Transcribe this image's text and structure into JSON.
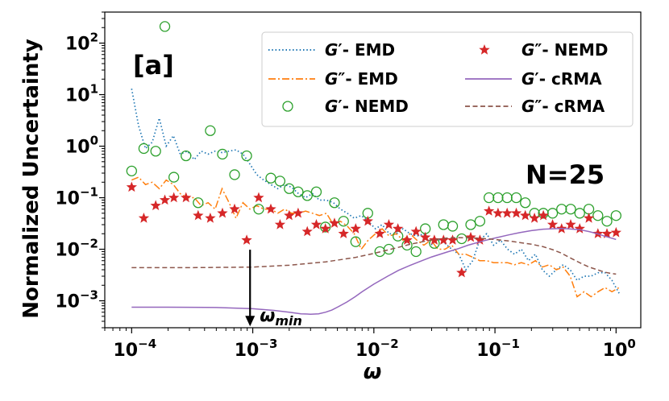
{
  "chart_data": {
    "type": "line",
    "xscale": "log",
    "yscale": "log",
    "xlim": [
      6e-05,
      1.6
    ],
    "ylim": [
      0.0003,
      400
    ],
    "xlabel": "ω",
    "ylabel": "Normalized Uncertainty",
    "xticks": [
      {
        "value": 0.0001,
        "base": "10",
        "exp": "−4"
      },
      {
        "value": 0.001,
        "base": "10",
        "exp": "−3"
      },
      {
        "value": 0.01,
        "base": "10",
        "exp": "−2"
      },
      {
        "value": 0.1,
        "base": "10",
        "exp": "−1"
      },
      {
        "value": 1,
        "base": "10",
        "exp": "0"
      }
    ],
    "yticks": [
      {
        "value": 0.001,
        "base": "10",
        "exp": "−3"
      },
      {
        "value": 0.01,
        "base": "10",
        "exp": "−2"
      },
      {
        "value": 0.1,
        "base": "10",
        "exp": "−1"
      },
      {
        "value": 1,
        "base": "10",
        "exp": "0"
      },
      {
        "value": 10,
        "base": "10",
        "exp": "1"
      },
      {
        "value": 100,
        "base": "10",
        "exp": "2"
      }
    ],
    "panel_label": "[a]",
    "n_label": "N=25",
    "annotation": {
      "label": "ω",
      "subscript": "min",
      "x": 0.00095,
      "y_start": 0.0098,
      "y_end": 0.00032
    },
    "series": [
      {
        "name": "G′- EMD",
        "prefix": "G",
        "prime": "′",
        "suffix": "- EMD",
        "style": "dotted",
        "color": "#1f77b4",
        "x": [
          0.0001,
          0.000114,
          0.00013,
          0.000148,
          0.000169,
          0.000193,
          0.000221,
          0.000252,
          0.000288,
          0.000329,
          0.000375,
          0.000428,
          0.000489,
          0.000558,
          0.000637,
          0.000727,
          0.00083,
          0.000947,
          0.00108,
          0.00123,
          0.00141,
          0.00161,
          0.00183,
          0.00209,
          0.00239,
          0.00273,
          0.00311,
          0.00355,
          0.00406,
          0.00463,
          0.00529,
          0.00604,
          0.00689,
          0.00787,
          0.00898,
          0.0103,
          0.0117,
          0.0134,
          0.0153,
          0.0174,
          0.0199,
          0.0227,
          0.0259,
          0.0296,
          0.0338,
          0.0386,
          0.044,
          0.0503,
          0.0574,
          0.0655,
          0.0748,
          0.0854,
          0.0975,
          0.111,
          0.127,
          0.145,
          0.165,
          0.189,
          0.216,
          0.246,
          0.281,
          0.321,
          0.366,
          0.418,
          0.477,
          0.545,
          0.622,
          0.71,
          0.811,
          0.925,
          1.06
        ],
        "y": [
          13,
          2.5,
          0.9,
          1.2,
          3.5,
          1.0,
          1.6,
          0.7,
          0.8,
          0.55,
          0.8,
          0.7,
          0.8,
          0.75,
          0.8,
          0.85,
          0.7,
          0.45,
          0.28,
          0.22,
          0.18,
          0.15,
          0.18,
          0.16,
          0.12,
          0.1,
          0.12,
          0.09,
          0.09,
          0.08,
          0.06,
          0.05,
          0.04,
          0.045,
          0.035,
          0.025,
          0.03,
          0.02,
          0.02,
          0.025,
          0.02,
          0.018,
          0.02,
          0.012,
          0.016,
          0.013,
          0.01,
          0.008,
          0.004,
          0.006,
          0.015,
          0.02,
          0.012,
          0.015,
          0.01,
          0.008,
          0.01,
          0.006,
          0.008,
          0.004,
          0.003,
          0.004,
          0.005,
          0.004,
          0.0025,
          0.003,
          0.003,
          0.0035,
          0.0035,
          0.0025,
          0.0014
        ]
      },
      {
        "name": "G″- EMD",
        "prefix": "G",
        "prime": "″",
        "suffix": "- EMD",
        "style": "dashdot",
        "color": "#ff7f0e",
        "x": [
          0.0001,
          0.000114,
          0.00013,
          0.000148,
          0.000169,
          0.000193,
          0.000221,
          0.000252,
          0.000288,
          0.000329,
          0.000375,
          0.000428,
          0.000489,
          0.000558,
          0.000637,
          0.000727,
          0.00083,
          0.000947,
          0.00108,
          0.00123,
          0.00141,
          0.00161,
          0.00183,
          0.00209,
          0.00239,
          0.00273,
          0.00311,
          0.00355,
          0.00406,
          0.00463,
          0.00529,
          0.00604,
          0.00689,
          0.00787,
          0.00898,
          0.0103,
          0.0117,
          0.0134,
          0.0153,
          0.0174,
          0.0199,
          0.0227,
          0.0259,
          0.0296,
          0.0338,
          0.0386,
          0.044,
          0.0503,
          0.0574,
          0.0655,
          0.0748,
          0.0854,
          0.0975,
          0.111,
          0.127,
          0.145,
          0.165,
          0.189,
          0.216,
          0.246,
          0.281,
          0.321,
          0.366,
          0.418,
          0.477,
          0.545,
          0.622,
          0.71,
          0.811,
          0.925,
          1.06
        ],
        "y": [
          0.22,
          0.25,
          0.18,
          0.2,
          0.15,
          0.22,
          0.18,
          0.12,
          0.1,
          0.1,
          0.07,
          0.08,
          0.06,
          0.15,
          0.08,
          0.04,
          0.08,
          0.06,
          0.07,
          0.06,
          0.06,
          0.05,
          0.06,
          0.05,
          0.05,
          0.055,
          0.05,
          0.045,
          0.05,
          0.03,
          0.035,
          0.028,
          0.02,
          0.01,
          0.015,
          0.02,
          0.025,
          0.018,
          0.02,
          0.015,
          0.02,
          0.015,
          0.012,
          0.015,
          0.01,
          0.01,
          0.012,
          0.008,
          0.008,
          0.007,
          0.006,
          0.006,
          0.0055,
          0.0055,
          0.0055,
          0.005,
          0.0055,
          0.005,
          0.006,
          0.0045,
          0.005,
          0.004,
          0.0045,
          0.003,
          0.0012,
          0.0015,
          0.0012,
          0.0015,
          0.0018,
          0.0015,
          0.0018
        ]
      },
      {
        "name": "G′- NEMD",
        "prefix": "G",
        "prime": "′",
        "suffix": "- NEMD",
        "style": "open-circle",
        "color": "#2ca02c",
        "x": [
          0.0001,
          0.000126,
          0.000158,
          0.000188,
          0.000223,
          0.000281,
          0.000354,
          0.000446,
          0.000562,
          0.000708,
          0.000891,
          0.00112,
          0.00141,
          0.00168,
          0.002,
          0.00237,
          0.00282,
          0.00335,
          0.00398,
          0.00473,
          0.00562,
          0.00708,
          0.00891,
          0.0112,
          0.0133,
          0.0158,
          0.0188,
          0.0223,
          0.0266,
          0.0316,
          0.0376,
          0.0447,
          0.0531,
          0.0631,
          0.0751,
          0.0892,
          0.106,
          0.126,
          0.15,
          0.178,
          0.212,
          0.251,
          0.299,
          0.355,
          0.422,
          0.501,
          0.596,
          0.708,
          0.841,
          1.0
        ],
        "y": [
          0.33,
          0.9,
          0.8,
          210,
          0.25,
          0.65,
          0.08,
          2.0,
          0.7,
          0.28,
          0.65,
          0.06,
          0.24,
          0.21,
          0.15,
          0.13,
          0.11,
          0.13,
          0.027,
          0.08,
          0.035,
          0.014,
          0.05,
          0.009,
          0.01,
          0.018,
          0.012,
          0.009,
          0.025,
          0.013,
          0.03,
          0.028,
          0.016,
          0.03,
          0.035,
          0.1,
          0.1,
          0.1,
          0.1,
          0.08,
          0.05,
          0.05,
          0.05,
          0.06,
          0.06,
          0.05,
          0.06,
          0.045,
          0.035,
          0.045
        ]
      },
      {
        "name": "G″- NEMD",
        "prefix": "G",
        "prime": "″",
        "suffix": "- NEMD",
        "style": "star",
        "color": "#d62728",
        "x": [
          0.0001,
          0.000126,
          0.000158,
          0.000188,
          0.000223,
          0.000281,
          0.000354,
          0.000446,
          0.000562,
          0.000708,
          0.000891,
          0.00112,
          0.00141,
          0.00168,
          0.002,
          0.00237,
          0.00282,
          0.00335,
          0.00398,
          0.00473,
          0.00562,
          0.00708,
          0.00891,
          0.0112,
          0.0133,
          0.0158,
          0.0188,
          0.0223,
          0.0266,
          0.0316,
          0.0376,
          0.0447,
          0.0531,
          0.0631,
          0.0751,
          0.0892,
          0.106,
          0.126,
          0.15,
          0.178,
          0.212,
          0.251,
          0.299,
          0.355,
          0.422,
          0.501,
          0.596,
          0.708,
          0.841,
          1.0
        ],
        "y": [
          0.16,
          0.04,
          0.07,
          0.09,
          0.1,
          0.1,
          0.045,
          0.04,
          0.05,
          0.06,
          0.015,
          0.1,
          0.06,
          0.03,
          0.045,
          0.05,
          0.022,
          0.03,
          0.025,
          0.032,
          0.02,
          0.025,
          0.035,
          0.02,
          0.03,
          0.025,
          0.015,
          0.022,
          0.017,
          0.015,
          0.015,
          0.015,
          0.0035,
          0.017,
          0.015,
          0.055,
          0.05,
          0.05,
          0.05,
          0.045,
          0.04,
          0.045,
          0.03,
          0.025,
          0.03,
          0.025,
          0.04,
          0.02,
          0.02,
          0.021
        ]
      },
      {
        "name": "G′- cRMA",
        "prefix": "G",
        "prime": "′",
        "suffix": "- cRMA",
        "style": "solid",
        "color": "#9467bd",
        "x": [
          0.0001,
          0.0002,
          0.0005,
          0.001,
          0.0015,
          0.002,
          0.0025,
          0.003,
          0.0035,
          0.004,
          0.0045,
          0.005,
          0.006,
          0.007,
          0.008,
          0.01,
          0.013,
          0.016,
          0.02,
          0.025,
          0.03,
          0.04,
          0.05,
          0.06,
          0.08,
          0.1,
          0.13,
          0.16,
          0.2,
          0.25,
          0.3,
          0.35,
          0.4,
          0.5,
          0.6,
          0.7,
          0.8,
          1.0
        ],
        "y": [
          0.00075,
          0.00075,
          0.00074,
          0.0007,
          0.00065,
          0.0006,
          0.00056,
          0.00055,
          0.00056,
          0.0006,
          0.00066,
          0.00075,
          0.00095,
          0.0012,
          0.0015,
          0.0021,
          0.003,
          0.0039,
          0.0049,
          0.006,
          0.0071,
          0.0088,
          0.0103,
          0.012,
          0.0145,
          0.0165,
          0.019,
          0.021,
          0.023,
          0.0245,
          0.025,
          0.0252,
          0.025,
          0.024,
          0.022,
          0.02,
          0.018,
          0.0155
        ]
      },
      {
        "name": "G″- cRMA",
        "prefix": "G",
        "prime": "″",
        "suffix": "- cRMA",
        "style": "dashed",
        "color": "#8c564b",
        "x": [
          0.0001,
          0.0003,
          0.001,
          0.002,
          0.004,
          0.007,
          0.01,
          0.015,
          0.02,
          0.03,
          0.04,
          0.05,
          0.07,
          0.1,
          0.13,
          0.16,
          0.2,
          0.25,
          0.3,
          0.35,
          0.4,
          0.5,
          0.6,
          0.7,
          0.8,
          0.9,
          1.0
        ],
        "y": [
          0.0044,
          0.0044,
          0.0045,
          0.0049,
          0.0057,
          0.0069,
          0.0083,
          0.0105,
          0.0125,
          0.0152,
          0.0165,
          0.0168,
          0.0165,
          0.0155,
          0.0145,
          0.0135,
          0.0125,
          0.0112,
          0.0098,
          0.0085,
          0.0072,
          0.0055,
          0.0045,
          0.004,
          0.0036,
          0.0034,
          0.0033
        ]
      }
    ]
  }
}
